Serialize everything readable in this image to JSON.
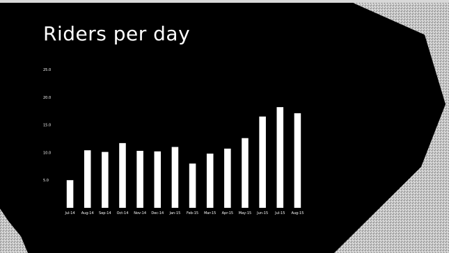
{
  "slide": {
    "title": "Riders per day",
    "background_color": "#000000",
    "accent_color": "#ffffff"
  },
  "chart_data": {
    "type": "bar",
    "title": "Riders per day",
    "xlabel": "",
    "ylabel": "",
    "grid": false,
    "legend": "none",
    "ylim": [
      0,
      25
    ],
    "yticks": [
      "25.0",
      "20.0",
      "15.0",
      "10.0",
      "5.0"
    ],
    "ytick_values": [
      25,
      20,
      15,
      10,
      5
    ],
    "categories": [
      "Jul-14",
      "Aug-14",
      "Sep-14",
      "Oct-14",
      "Nov-14",
      "Dec-14",
      "Jan-15",
      "Feb-15",
      "Mar-15",
      "Apr-15",
      "May-15",
      "Jun-15",
      "Jul-15",
      "Aug-15"
    ],
    "values": [
      5.0,
      10.4,
      10.1,
      11.7,
      10.3,
      10.2,
      11.0,
      8.0,
      9.8,
      10.7,
      12.6,
      16.5,
      18.2,
      17.1
    ],
    "bar_color": "#ffffff"
  }
}
